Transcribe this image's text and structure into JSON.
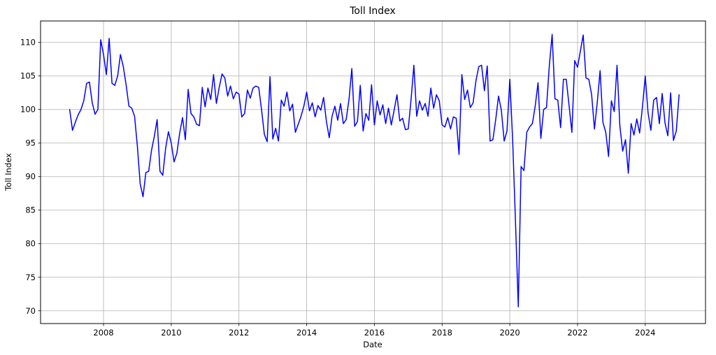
{
  "chart_data": {
    "type": "line",
    "title": "Toll Index",
    "xlabel": "Date",
    "ylabel": "Toll Index",
    "legend": null,
    "grid": true,
    "grid_color": "#b0b0b0",
    "line_color": "#0000ff",
    "line_width": 1.5,
    "background_color": "#ffffff",
    "xlim": [
      2006.14,
      2025.78
    ],
    "ylim": [
      68.1,
      113.2
    ],
    "xticks": [
      2008,
      2010,
      2012,
      2014,
      2016,
      2018,
      2020,
      2022,
      2024
    ],
    "yticks": [
      70,
      75,
      80,
      85,
      90,
      95,
      100,
      105,
      110
    ],
    "x_start_year": 2007,
    "x_start_month": 1,
    "frequency": "monthly",
    "series": [
      {
        "name": "Toll Index",
        "values": [
          100.0,
          96.9,
          98.1,
          99.2,
          100.0,
          101.3,
          103.9,
          104.1,
          101.0,
          99.3,
          100.0,
          110.4,
          108.2,
          105.2,
          110.6,
          103.9,
          103.6,
          105.0,
          108.2,
          106.4,
          103.7,
          100.5,
          100.2,
          99.0,
          94.5,
          88.9,
          87.0,
          90.6,
          90.8,
          93.9,
          96.0,
          98.5,
          90.8,
          90.2,
          94.2,
          96.7,
          95.0,
          92.2,
          93.5,
          96.5,
          98.8,
          95.5,
          103.0,
          99.4,
          98.9,
          97.8,
          97.6,
          103.3,
          100.4,
          103.2,
          101.5,
          105.2,
          100.9,
          103.3,
          105.3,
          104.7,
          102.0,
          103.5,
          101.6,
          102.6,
          102.3,
          98.9,
          99.4,
          102.9,
          101.7,
          103.2,
          103.5,
          103.3,
          100.0,
          96.3,
          95.2,
          104.9,
          95.6,
          97.2,
          95.3,
          101.4,
          100.5,
          102.6,
          99.8,
          100.8,
          96.6,
          97.8,
          99.0,
          100.5,
          102.6,
          99.8,
          101.0,
          98.9,
          100.6,
          99.9,
          101.8,
          98.2,
          95.8,
          99.0,
          100.5,
          98.4,
          100.9,
          97.9,
          98.5,
          101.5,
          106.1,
          97.5,
          98.2,
          103.6,
          96.8,
          99.4,
          98.4,
          103.7,
          97.7,
          101.3,
          99.2,
          100.7,
          97.9,
          100.2,
          97.7,
          99.9,
          102.2,
          98.3,
          98.7,
          97.0,
          97.1,
          101.5,
          106.6,
          99.0,
          101.3,
          99.9,
          100.9,
          99.0,
          103.2,
          100.2,
          102.2,
          101.3,
          97.7,
          97.4,
          98.8,
          97.1,
          98.9,
          98.7,
          93.3,
          105.2,
          101.5,
          102.9,
          100.3,
          101.0,
          104.3,
          106.4,
          106.6,
          102.8,
          106.5,
          95.3,
          95.5,
          98.5,
          102.0,
          99.9,
          95.3,
          96.8,
          104.5,
          95.5,
          83.4,
          70.6,
          91.5,
          90.9,
          96.6,
          97.4,
          97.9,
          100.5,
          104.0,
          95.7,
          100.0,
          100.3,
          106.5,
          111.2,
          101.6,
          101.4,
          97.3,
          104.5,
          104.5,
          100.6,
          96.6,
          107.3,
          106.3,
          108.7,
          111.1,
          104.7,
          104.5,
          102.2,
          97.1,
          101.1,
          105.8,
          98.1,
          96.6,
          93.0,
          101.3,
          99.7,
          106.6,
          97.6,
          93.8,
          95.5,
          90.5,
          97.9,
          96.2,
          98.6,
          96.5,
          100.3,
          105.0,
          99.5,
          96.9,
          101.4,
          101.8,
          97.9,
          102.4,
          98.0,
          96.1,
          102.5,
          95.4,
          96.8,
          102.2
        ]
      }
    ]
  },
  "layout_note": "single line chart, full box spines, outward tick marks"
}
